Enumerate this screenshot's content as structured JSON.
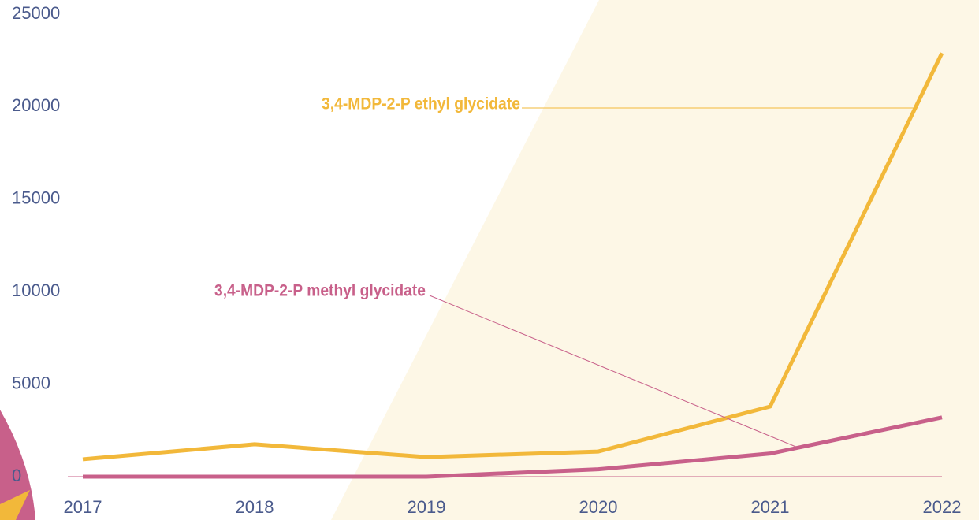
{
  "chart_data": {
    "type": "line",
    "categories": [
      "2017",
      "2018",
      "2019",
      "2020",
      "2021",
      "2022"
    ],
    "series": [
      {
        "name": "3,4-MDP-2-P ethyl glycidate",
        "color": "#f2b83a",
        "values": [
          940,
          1750,
          1060,
          1360,
          3790,
          22900
        ]
      },
      {
        "name": "3,4-MDP-2-P methyl glycidate",
        "color": "#c8608a",
        "values": [
          0,
          0,
          0,
          400,
          1250,
          3200
        ]
      }
    ],
    "ylim": [
      0,
      25000
    ],
    "yticks": [
      0,
      5000,
      10000,
      15000,
      20000,
      25000
    ],
    "grid": false
  }
}
